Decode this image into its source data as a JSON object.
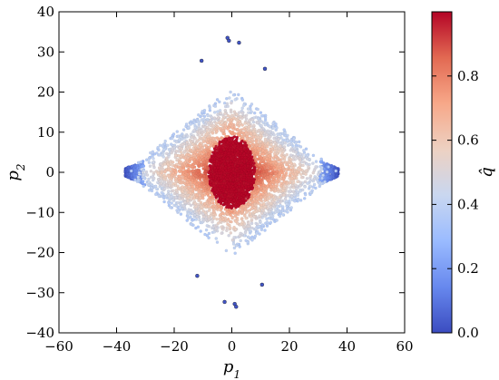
{
  "chart_data": {
    "type": "scatter",
    "title": "",
    "xlabel": "p",
    "xlabel_sub": "1",
    "ylabel": "p",
    "ylabel_sub": "2",
    "xlim": [
      -60,
      60
    ],
    "ylim": [
      -40,
      40
    ],
    "x_ticks": [
      -60,
      -40,
      -20,
      0,
      20,
      40,
      60
    ],
    "x_tick_labels": [
      "−60",
      "−40",
      "−20",
      "0",
      "20",
      "40",
      "60"
    ],
    "y_ticks": [
      -40,
      -30,
      -20,
      -10,
      0,
      10,
      20,
      30,
      40
    ],
    "y_tick_labels": [
      "−40",
      "−30",
      "−20",
      "−10",
      "0",
      "10",
      "20",
      "30",
      "40"
    ],
    "grid": false,
    "colormap": "coolwarm",
    "colorbar": {
      "label": "q̂",
      "range": [
        0,
        1
      ],
      "ticks": [
        0,
        0.2,
        0.4,
        0.6,
        0.8
      ],
      "tick_labels": [
        "0.0",
        "0.2",
        "0.4",
        "0.6",
        "0.8"
      ],
      "colors": [
        "#3b4cc0",
        "#6788ee",
        "#9abbff",
        "#c9d7f0",
        "#edd1c2",
        "#f7a889",
        "#e26952",
        "#b40426"
      ]
    },
    "main_cluster": {
      "shape": "diamond",
      "x_extent": [
        -37,
        37
      ],
      "y_extent": [
        -21,
        21
      ],
      "core_center": [
        0,
        0
      ],
      "core_extent_x": [
        -7,
        7
      ],
      "core_extent_y": [
        -8,
        8
      ],
      "core_q": 1.0,
      "outer_q": 0.4,
      "tip_q": 0.0,
      "tips": [
        [
          -36,
          0
        ],
        [
          36,
          0
        ]
      ]
    },
    "outlier_points": [
      {
        "x": -1.5,
        "y": 33.5,
        "q": 0.02
      },
      {
        "x": -1.0,
        "y": 32.8,
        "q": 0.02
      },
      {
        "x": 2.5,
        "y": 32.3,
        "q": 0.02
      },
      {
        "x": -10.5,
        "y": 27.8,
        "q": 0.02
      },
      {
        "x": 11.5,
        "y": 25.8,
        "q": 0.02
      },
      {
        "x": -12.0,
        "y": -25.8,
        "q": 0.02
      },
      {
        "x": 10.5,
        "y": -28.0,
        "q": 0.02
      },
      {
        "x": -2.5,
        "y": -32.3,
        "q": 0.02
      },
      {
        "x": 1.0,
        "y": -32.8,
        "q": 0.02
      },
      {
        "x": 1.5,
        "y": -33.5,
        "q": 0.02
      }
    ]
  }
}
